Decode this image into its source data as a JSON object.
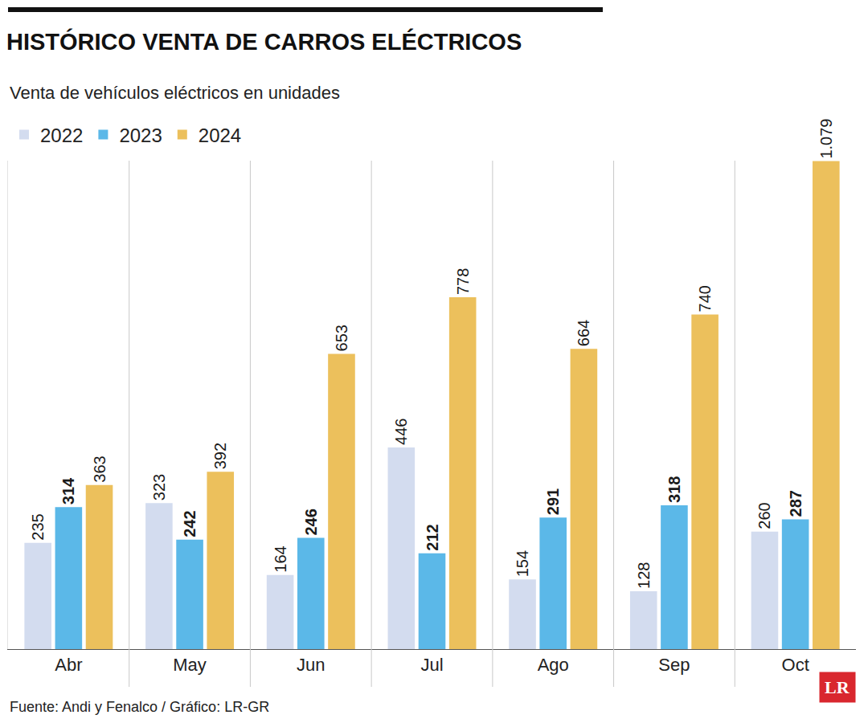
{
  "chart_data": {
    "type": "bar",
    "title": "HISTÓRICO VENTA DE CARROS ELÉCTRICOS",
    "subtitle": "Venta de vehículos eléctricos en unidades",
    "source": "Fuente: Andi y Fenalco / Gráfico: LR-GR",
    "logo": "LR",
    "categories": [
      "Abr",
      "May",
      "Jun",
      "Jul",
      "Ago",
      "Sep",
      "Oct"
    ],
    "series": [
      {
        "name": "2022",
        "color": "#d3dcef",
        "values": [
          235,
          323,
          164,
          446,
          154,
          128,
          260
        ]
      },
      {
        "name": "2023",
        "color": "#5bb8e8",
        "values": [
          314,
          242,
          246,
          212,
          291,
          318,
          287
        ]
      },
      {
        "name": "2024",
        "color": "#ecc05c",
        "values": [
          363,
          392,
          653,
          778,
          664,
          740,
          1079
        ],
        "value_labels": [
          "363",
          "392",
          "653",
          "778",
          "664",
          "740",
          "1.079"
        ]
      }
    ],
    "ylim": [
      0,
      1080
    ],
    "yticks": [],
    "tick_labels": "x",
    "grid": false,
    "legend": "top-left",
    "data_labels": true
  }
}
